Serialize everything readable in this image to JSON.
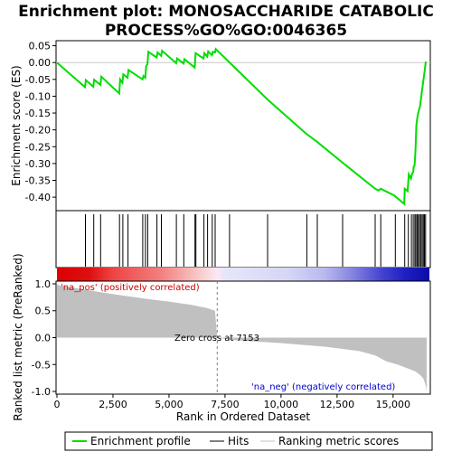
{
  "chart_data": {
    "type": "line",
    "title_lines": [
      "Enrichment plot: MONOSACCHARIDE CATABOLIC",
      "PROCESS%GO%GO:0046365"
    ],
    "top_panel": {
      "ylabel": "Enrichment score (ES)",
      "ylim": [
        -0.44,
        0.065
      ],
      "yticks": [
        0.05,
        0.0,
        -0.05,
        -0.1,
        -0.15,
        -0.2,
        -0.25,
        -0.3,
        -0.35,
        -0.4
      ],
      "ytick_labels": [
        "0.05",
        "0.00",
        "-0.05",
        "-0.10",
        "-0.15",
        "-0.20",
        "-0.25",
        "-0.30",
        "-0.35",
        "-0.40"
      ],
      "series": [
        {
          "name": "Enrichment profile",
          "color": "#00dd00",
          "x": [
            0,
            1250,
            1290,
            1620,
            1660,
            1940,
            1980,
            2780,
            2820,
            2920,
            2960,
            3150,
            3190,
            3820,
            3860,
            3940,
            3980,
            4040,
            4080,
            4450,
            4490,
            4650,
            4690,
            5320,
            5360,
            5650,
            5690,
            6150,
            6190,
            6540,
            6580,
            6710,
            6750,
            6920,
            6960,
            7050,
            7090,
            9400,
            11100,
            11600,
            12700,
            14200,
            14350,
            14450,
            15050,
            15500,
            15520,
            15650,
            15700,
            15800,
            15850,
            15900,
            15920,
            15960,
            15980,
            16000,
            16040,
            16080,
            16120,
            16160,
            16200,
            16240,
            16280,
            16320,
            16360,
            16400,
            16460
          ],
          "y": [
            0.0,
            -0.073,
            -0.052,
            -0.072,
            -0.051,
            -0.066,
            -0.042,
            -0.092,
            -0.05,
            -0.06,
            -0.035,
            -0.045,
            -0.022,
            -0.05,
            -0.04,
            -0.045,
            -0.01,
            -0.005,
            0.032,
            0.015,
            0.03,
            0.02,
            0.035,
            -0.002,
            0.012,
            -0.003,
            0.01,
            -0.015,
            0.028,
            0.012,
            0.028,
            0.018,
            0.033,
            0.022,
            0.032,
            0.03,
            0.04,
            -0.11,
            -0.21,
            -0.235,
            -0.295,
            -0.375,
            -0.38,
            -0.375,
            -0.395,
            -0.42,
            -0.375,
            -0.382,
            -0.332,
            -0.345,
            -0.33,
            -0.325,
            -0.31,
            -0.305,
            -0.285,
            -0.26,
            -0.185,
            -0.165,
            -0.15,
            -0.14,
            -0.13,
            -0.11,
            -0.09,
            -0.07,
            -0.05,
            -0.03,
            0.003
          ]
        }
      ]
    },
    "hits": [
      1270,
      1640,
      1950,
      2790,
      2940,
      3170,
      3830,
      3950,
      4050,
      4460,
      4660,
      5330,
      5660,
      6160,
      6200,
      6560,
      6720,
      6930,
      7060,
      7700,
      9400,
      11150,
      11620,
      12750,
      14200,
      14450,
      15100,
      15520,
      15680,
      15820,
      15900,
      15970,
      16020,
      16080,
      16130,
      16180,
      16240,
      16300,
      16350,
      16400,
      16450
    ],
    "heatmap_label_pos": "'na_pos' (positively correlated)",
    "heatmap_label_neg": "'na_neg' (negatively correlated)",
    "bottom_panel": {
      "ylabel": "Ranked list metric (PreRanked)",
      "xlabel": "Rank in Ordered Dataset",
      "ylim": [
        -1.05,
        1.05
      ],
      "yticks": [
        1.0,
        0.5,
        0.0,
        -0.5,
        -1.0
      ],
      "ytick_labels": [
        "1.0",
        "0.5",
        "0.0",
        "-0.5",
        "-1.0"
      ],
      "xlim": [
        0,
        16500
      ],
      "xticks": [
        0,
        2500,
        5000,
        7500,
        10000,
        12500,
        15000
      ],
      "xtick_labels": [
        "0",
        "2,500",
        "5,000",
        "7,500",
        "10,000",
        "12,500",
        "15,000"
      ],
      "zero_cross_label": "Zero cross at 7153",
      "zero_cross": 7153,
      "metric_x": [
        0,
        60,
        200,
        500,
        1000,
        2000,
        3000,
        4000,
        5000,
        6000,
        6700,
        7050,
        7153,
        8000,
        10000,
        12000,
        13500,
        14200,
        14700,
        15200,
        15700,
        16000,
        16200,
        16350,
        16420,
        16470,
        16500
      ],
      "metric_y": [
        1.0,
        0.98,
        0.96,
        0.94,
        0.91,
        0.84,
        0.78,
        0.72,
        0.67,
        0.61,
        0.55,
        0.5,
        0.0,
        -0.05,
        -0.1,
        -0.17,
        -0.25,
        -0.33,
        -0.44,
        -0.5,
        -0.58,
        -0.63,
        -0.69,
        -0.76,
        -0.84,
        -0.92,
        -1.0
      ]
    },
    "legend": [
      "Enrichment profile",
      "Hits",
      "Ranking metric scores"
    ],
    "colors": {
      "profile": "#00dd00",
      "hits": "#000000",
      "metric": "#c0c0c0",
      "zero_line": "#808080"
    }
  }
}
